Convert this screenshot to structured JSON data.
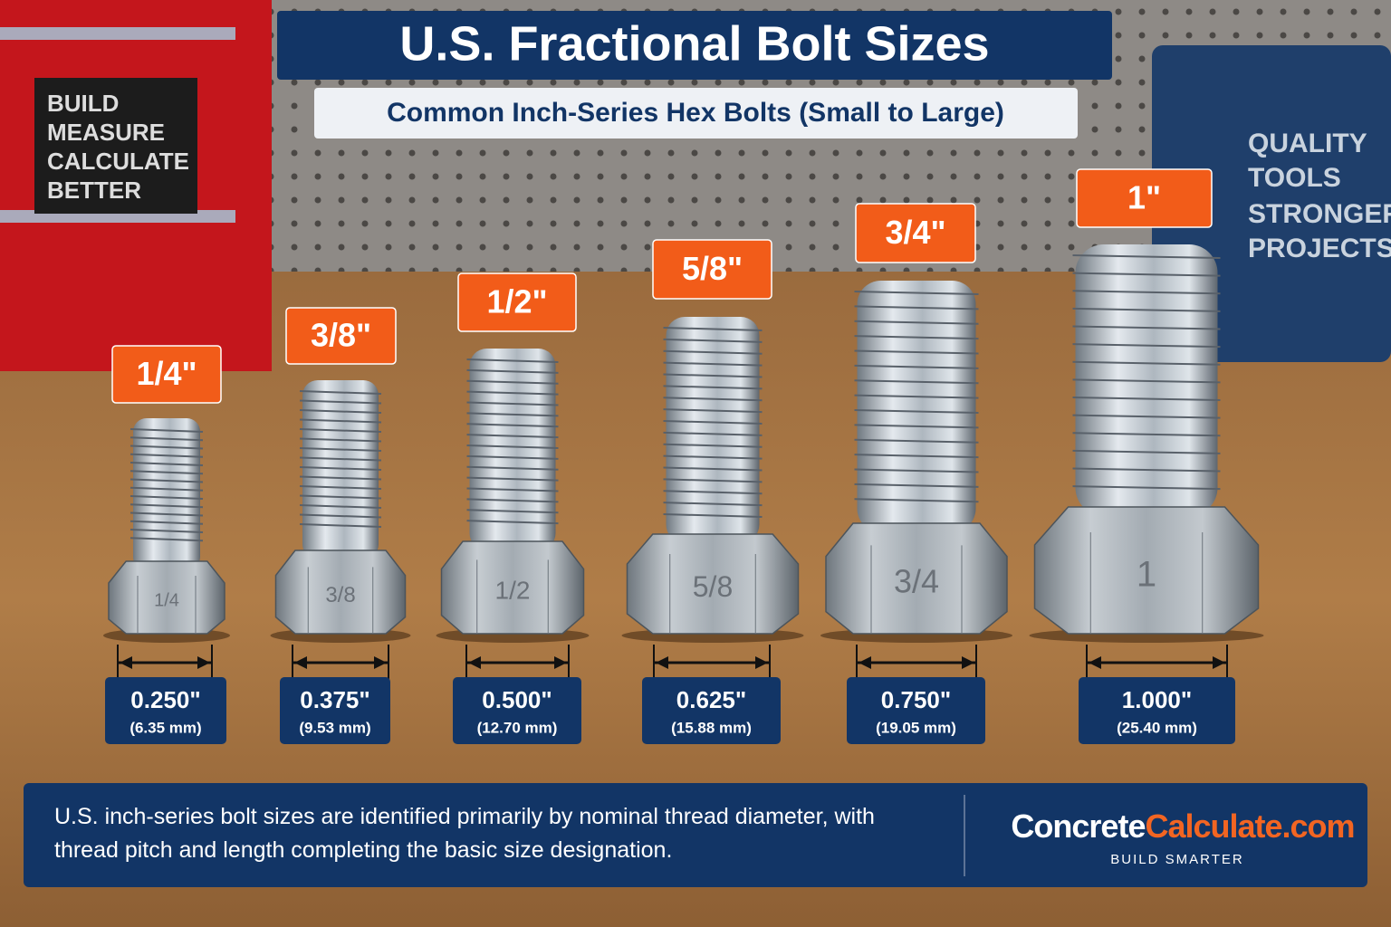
{
  "header": {
    "title": "U.S. Fractional Bolt Sizes",
    "subtitle": "Common Inch-Series Hex Bolts (Small to Large)"
  },
  "background": {
    "drawer_sign": [
      "BUILD",
      "MEASURE",
      "CALCULATE",
      "BETTER"
    ],
    "case_sign": [
      "QUALITY",
      "TOOLS",
      "STRONGER",
      "PROJECTS"
    ]
  },
  "bolts": [
    {
      "label": "1/4\"",
      "head_mark": "1/4",
      "inch": "0.250\"",
      "mm": "(6.35 mm)"
    },
    {
      "label": "3/8\"",
      "head_mark": "3/8",
      "inch": "0.375\"",
      "mm": "(9.53 mm)"
    },
    {
      "label": "1/2\"",
      "head_mark": "1/2",
      "inch": "0.500\"",
      "mm": "(12.70 mm)"
    },
    {
      "label": "5/8\"",
      "head_mark": "5/8",
      "inch": "0.625\"",
      "mm": "(15.88 mm)"
    },
    {
      "label": "3/4\"",
      "head_mark": "3/4",
      "inch": "0.750\"",
      "mm": "(19.05 mm)"
    },
    {
      "label": "1\"",
      "head_mark": "1",
      "inch": "1.000\"",
      "mm": "(25.40 mm)"
    }
  ],
  "footer": {
    "text": "U.S. inch-series bolt sizes are identified primarily by nominal thread diameter, with thread pitch and length completing the basic size designation.",
    "brand_a": "Concrete",
    "brand_b": "Calculate.com",
    "tagline": "BUILD SMARTER"
  }
}
